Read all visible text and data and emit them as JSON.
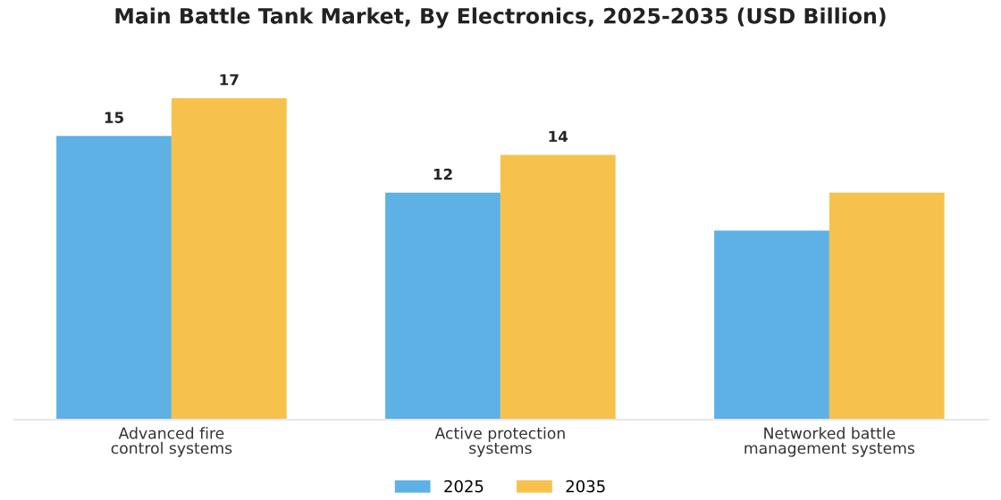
{
  "chart_data": {
    "type": "bar",
    "title": "Main Battle Tank Market, By Electronics, 2025-2035 (USD Billion)",
    "categories": [
      "Advanced fire\ncontrol systems",
      "Active protection\nsystems",
      "Networked battle\nmanagement systems"
    ],
    "series": [
      {
        "name": "2025",
        "color": "#5db1e4",
        "values": [
          15,
          12,
          10
        ],
        "value_labels": [
          "15",
          "12",
          null
        ]
      },
      {
        "name": "2035",
        "color": "#f6c24b",
        "values": [
          17,
          14,
          12
        ],
        "value_labels": [
          "17",
          "14",
          null
        ]
      }
    ],
    "tick_labels": "x",
    "grid": false,
    "legend": "bottom"
  }
}
